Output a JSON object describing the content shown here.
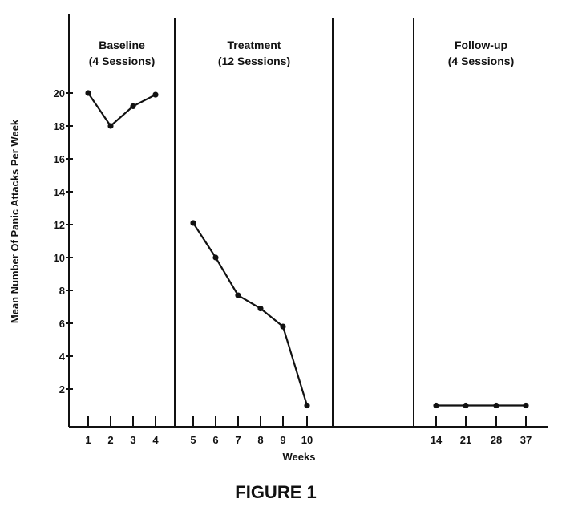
{
  "caption": "FIGURE 1",
  "chart_data": {
    "type": "line",
    "title": "",
    "xlabel": "Weeks",
    "ylabel": "Mean Number Of Panic Attacks Per Week",
    "ylim": [
      0,
      22
    ],
    "yticks": [
      "2",
      "4",
      "6",
      "8",
      "10",
      "12",
      "14",
      "16",
      "18",
      "20"
    ],
    "grid": false,
    "phases": [
      {
        "name": "Baseline",
        "sessions": "(4 Sessions)"
      },
      {
        "name": "Treatment",
        "sessions": "(12 Sessions)"
      },
      {
        "name": "",
        "sessions": ""
      },
      {
        "name": "Follow-up",
        "sessions": "(4 Sessions)"
      }
    ],
    "segments": [
      {
        "phase": "Baseline",
        "x": [
          "1",
          "2",
          "3",
          "4"
        ],
        "values": [
          20,
          18,
          19.2,
          19.9
        ]
      },
      {
        "phase": "Treatment",
        "x": [
          "5",
          "6",
          "7",
          "8",
          "9",
          "10"
        ],
        "values": [
          12.1,
          10,
          7.7,
          6.9,
          5.8,
          1
        ]
      },
      {
        "phase": "Follow-up",
        "x": [
          "14",
          "21",
          "28",
          "37"
        ],
        "values": [
          1,
          1,
          1,
          1
        ]
      }
    ]
  }
}
